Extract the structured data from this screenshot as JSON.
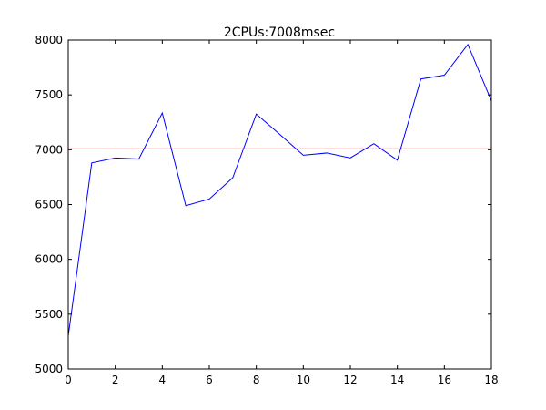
{
  "chart_data": {
    "type": "line",
    "title": "2CPUs:7008msec",
    "xlabel": "",
    "ylabel": "",
    "xlim": [
      0,
      18
    ],
    "ylim": [
      5000,
      8000
    ],
    "xticks": [
      0,
      2,
      4,
      6,
      8,
      10,
      12,
      14,
      16,
      18
    ],
    "yticks": [
      5000,
      5500,
      6000,
      6500,
      7000,
      7500,
      8000
    ],
    "grid": false,
    "series": [
      {
        "color": "#0000ff",
        "x": [
          0,
          1,
          2,
          3,
          4,
          5,
          6,
          7,
          8,
          9,
          10,
          11,
          12,
          13,
          14,
          15,
          16,
          17,
          18
        ],
        "values": [
          5300,
          6880,
          6925,
          6915,
          7335,
          6490,
          6550,
          6745,
          7325,
          7140,
          6950,
          6970,
          6925,
          7055,
          6905,
          7645,
          7680,
          7960,
          7445
        ]
      }
    ],
    "reference_line": {
      "y": 7008,
      "color": "#ff0000"
    }
  }
}
